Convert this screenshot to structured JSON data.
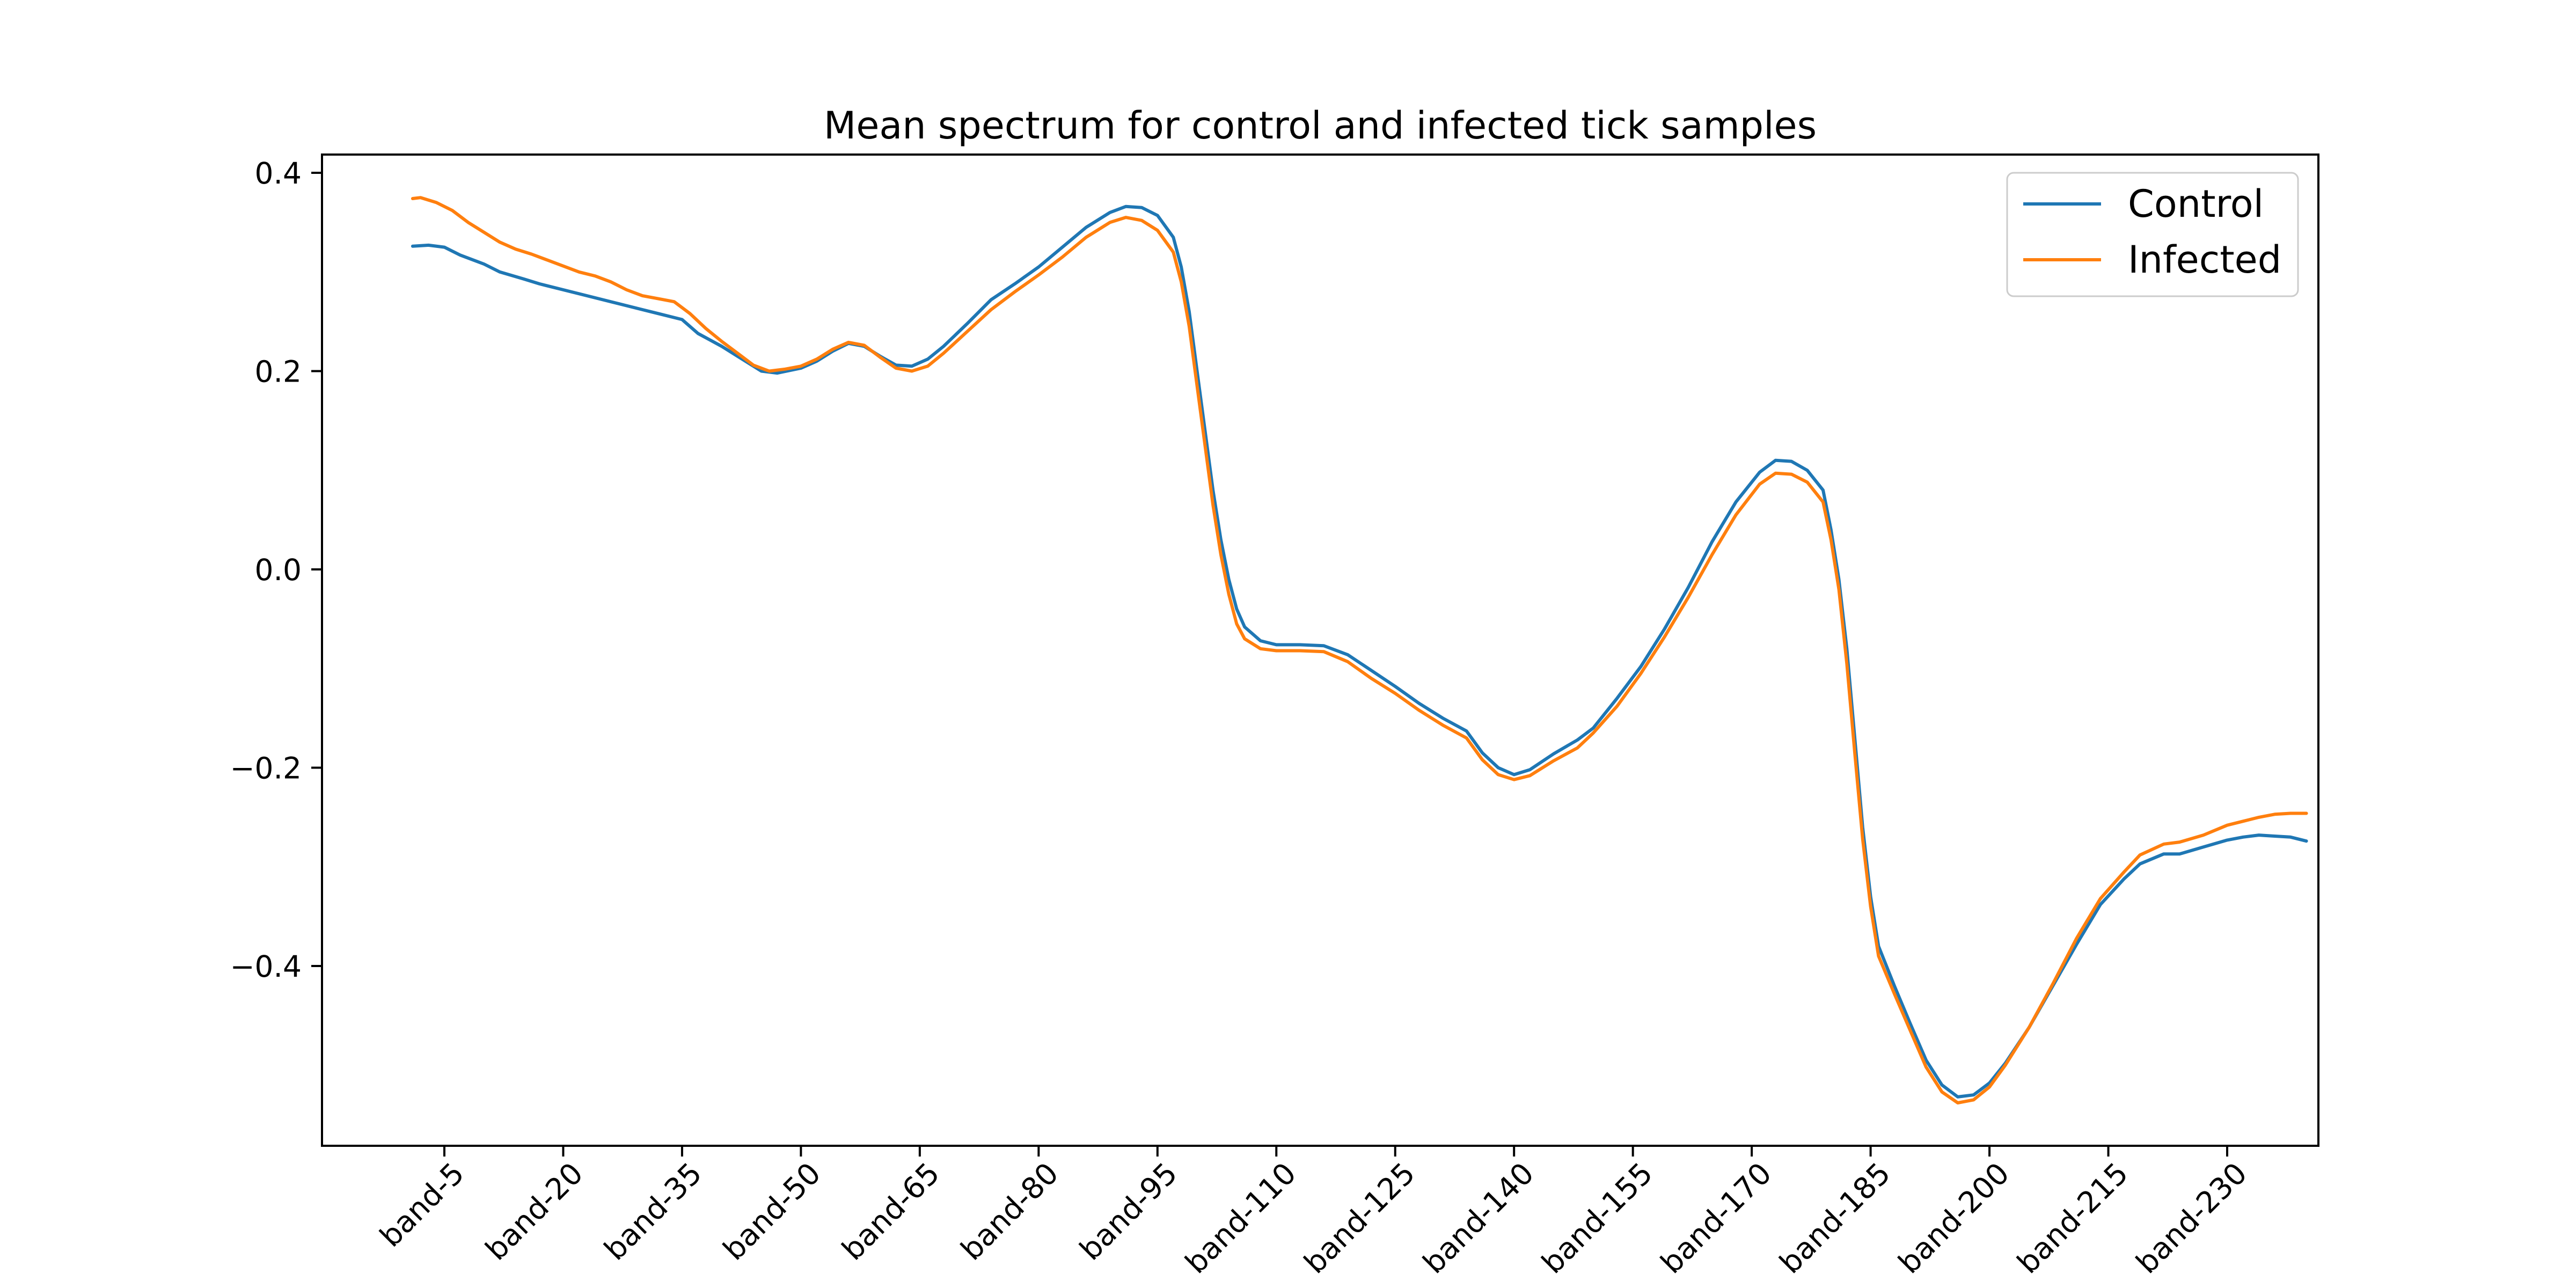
{
  "chart_data": {
    "type": "line",
    "title": "Mean spectrum for control and infected tick samples",
    "xlabel": "",
    "ylabel": "",
    "x_range": [
      0,
      234
    ],
    "ylim": [
      -0.58,
      0.42
    ],
    "grid": false,
    "legend_placement": "top-right",
    "x_ticks": [
      {
        "label": "band-5",
        "value": 5
      },
      {
        "label": "band-20",
        "value": 20
      },
      {
        "label": "band-35",
        "value": 35
      },
      {
        "label": "band-50",
        "value": 50
      },
      {
        "label": "band-65",
        "value": 65
      },
      {
        "label": "band-80",
        "value": 80
      },
      {
        "label": "band-95",
        "value": 95
      },
      {
        "label": "band-110",
        "value": 110
      },
      {
        "label": "band-125",
        "value": 125
      },
      {
        "label": "band-140",
        "value": 140
      },
      {
        "label": "band-155",
        "value": 155
      },
      {
        "label": "band-170",
        "value": 170
      },
      {
        "label": "band-185",
        "value": 185
      },
      {
        "label": "band-200",
        "value": 200
      },
      {
        "label": "band-215",
        "value": 215
      },
      {
        "label": "band-230",
        "value": 230
      }
    ],
    "y_ticks": [
      {
        "label": "0.4",
        "value": 0.4
      },
      {
        "label": "0.2",
        "value": 0.2
      },
      {
        "label": "0.0",
        "value": 0.0
      },
      {
        "label": "−0.2",
        "value": -0.2
      },
      {
        "label": "−0.4",
        "value": -0.4
      }
    ],
    "series": [
      {
        "name": "Control",
        "color": "#1f77b4",
        "points": [
          [
            1,
            0.326
          ],
          [
            3,
            0.327
          ],
          [
            5,
            0.325
          ],
          [
            7,
            0.317
          ],
          [
            10,
            0.308
          ],
          [
            12,
            0.3
          ],
          [
            15,
            0.293
          ],
          [
            17,
            0.288
          ],
          [
            20,
            0.282
          ],
          [
            22,
            0.278
          ],
          [
            25,
            0.272
          ],
          [
            27,
            0.268
          ],
          [
            30,
            0.262
          ],
          [
            32,
            0.258
          ],
          [
            35,
            0.252
          ],
          [
            37,
            0.238
          ],
          [
            40,
            0.225
          ],
          [
            42,
            0.215
          ],
          [
            45,
            0.2
          ],
          [
            47,
            0.198
          ],
          [
            50,
            0.203
          ],
          [
            52,
            0.21
          ],
          [
            54,
            0.22
          ],
          [
            56,
            0.228
          ],
          [
            58,
            0.225
          ],
          [
            60,
            0.215
          ],
          [
            62,
            0.206
          ],
          [
            64,
            0.205
          ],
          [
            66,
            0.212
          ],
          [
            68,
            0.225
          ],
          [
            71,
            0.248
          ],
          [
            74,
            0.272
          ],
          [
            77,
            0.288
          ],
          [
            80,
            0.305
          ],
          [
            83,
            0.325
          ],
          [
            86,
            0.345
          ],
          [
            89,
            0.36
          ],
          [
            91,
            0.366
          ],
          [
            93,
            0.365
          ],
          [
            95,
            0.357
          ],
          [
            97,
            0.335
          ],
          [
            98,
            0.305
          ],
          [
            99,
            0.26
          ],
          [
            100,
            0.2
          ],
          [
            101,
            0.14
          ],
          [
            102,
            0.08
          ],
          [
            103,
            0.03
          ],
          [
            104,
            -0.01
          ],
          [
            105,
            -0.04
          ],
          [
            106,
            -0.058
          ],
          [
            108,
            -0.072
          ],
          [
            110,
            -0.076
          ],
          [
            113,
            -0.076
          ],
          [
            116,
            -0.077
          ],
          [
            119,
            -0.086
          ],
          [
            122,
            -0.102
          ],
          [
            125,
            -0.118
          ],
          [
            128,
            -0.135
          ],
          [
            131,
            -0.15
          ],
          [
            134,
            -0.163
          ],
          [
            136,
            -0.185
          ],
          [
            138,
            -0.2
          ],
          [
            140,
            -0.207
          ],
          [
            142,
            -0.202
          ],
          [
            145,
            -0.186
          ],
          [
            148,
            -0.172
          ],
          [
            150,
            -0.16
          ],
          [
            153,
            -0.13
          ],
          [
            156,
            -0.098
          ],
          [
            159,
            -0.06
          ],
          [
            162,
            -0.018
          ],
          [
            165,
            0.028
          ],
          [
            168,
            0.068
          ],
          [
            171,
            0.098
          ],
          [
            173,
            0.11
          ],
          [
            175,
            0.109
          ],
          [
            177,
            0.1
          ],
          [
            179,
            0.08
          ],
          [
            180,
            0.04
          ],
          [
            181,
            -0.01
          ],
          [
            182,
            -0.08
          ],
          [
            183,
            -0.17
          ],
          [
            184,
            -0.26
          ],
          [
            185,
            -0.33
          ],
          [
            186,
            -0.38
          ],
          [
            188,
            -0.42
          ],
          [
            190,
            -0.458
          ],
          [
            192,
            -0.495
          ],
          [
            194,
            -0.52
          ],
          [
            196,
            -0.532
          ],
          [
            198,
            -0.53
          ],
          [
            200,
            -0.518
          ],
          [
            202,
            -0.498
          ],
          [
            205,
            -0.462
          ],
          [
            208,
            -0.42
          ],
          [
            211,
            -0.378
          ],
          [
            214,
            -0.338
          ],
          [
            217,
            -0.312
          ],
          [
            219,
            -0.297
          ],
          [
            222,
            -0.287
          ],
          [
            224,
            -0.287
          ],
          [
            227,
            -0.28
          ],
          [
            230,
            -0.273
          ],
          [
            232,
            -0.27
          ],
          [
            234,
            -0.268
          ],
          [
            236,
            -0.269
          ],
          [
            238,
            -0.27
          ],
          [
            240,
            -0.274
          ]
        ]
      },
      {
        "name": "Infected",
        "color": "#ff7f0e",
        "points": [
          [
            1,
            0.374
          ],
          [
            2,
            0.375
          ],
          [
            4,
            0.37
          ],
          [
            6,
            0.362
          ],
          [
            8,
            0.35
          ],
          [
            10,
            0.34
          ],
          [
            12,
            0.33
          ],
          [
            14,
            0.323
          ],
          [
            16,
            0.318
          ],
          [
            18,
            0.312
          ],
          [
            20,
            0.306
          ],
          [
            22,
            0.3
          ],
          [
            24,
            0.296
          ],
          [
            26,
            0.29
          ],
          [
            28,
            0.282
          ],
          [
            30,
            0.276
          ],
          [
            32,
            0.273
          ],
          [
            34,
            0.27
          ],
          [
            36,
            0.258
          ],
          [
            38,
            0.243
          ],
          [
            40,
            0.23
          ],
          [
            42,
            0.218
          ],
          [
            44,
            0.206
          ],
          [
            46,
            0.2
          ],
          [
            48,
            0.202
          ],
          [
            50,
            0.205
          ],
          [
            52,
            0.212
          ],
          [
            54,
            0.222
          ],
          [
            56,
            0.229
          ],
          [
            58,
            0.226
          ],
          [
            60,
            0.214
          ],
          [
            62,
            0.203
          ],
          [
            64,
            0.2
          ],
          [
            66,
            0.205
          ],
          [
            68,
            0.218
          ],
          [
            71,
            0.24
          ],
          [
            74,
            0.262
          ],
          [
            77,
            0.28
          ],
          [
            80,
            0.297
          ],
          [
            83,
            0.315
          ],
          [
            86,
            0.335
          ],
          [
            89,
            0.35
          ],
          [
            91,
            0.355
          ],
          [
            93,
            0.352
          ],
          [
            95,
            0.342
          ],
          [
            97,
            0.32
          ],
          [
            98,
            0.29
          ],
          [
            99,
            0.245
          ],
          [
            100,
            0.185
          ],
          [
            101,
            0.125
          ],
          [
            102,
            0.065
          ],
          [
            103,
            0.015
          ],
          [
            104,
            -0.025
          ],
          [
            105,
            -0.055
          ],
          [
            106,
            -0.07
          ],
          [
            108,
            -0.08
          ],
          [
            110,
            -0.082
          ],
          [
            113,
            -0.082
          ],
          [
            116,
            -0.083
          ],
          [
            119,
            -0.093
          ],
          [
            122,
            -0.11
          ],
          [
            125,
            -0.125
          ],
          [
            128,
            -0.142
          ],
          [
            131,
            -0.157
          ],
          [
            134,
            -0.17
          ],
          [
            136,
            -0.192
          ],
          [
            138,
            -0.207
          ],
          [
            140,
            -0.212
          ],
          [
            142,
            -0.208
          ],
          [
            145,
            -0.193
          ],
          [
            148,
            -0.18
          ],
          [
            150,
            -0.165
          ],
          [
            153,
            -0.138
          ],
          [
            156,
            -0.105
          ],
          [
            159,
            -0.068
          ],
          [
            162,
            -0.028
          ],
          [
            165,
            0.015
          ],
          [
            168,
            0.055
          ],
          [
            171,
            0.086
          ],
          [
            173,
            0.097
          ],
          [
            175,
            0.096
          ],
          [
            177,
            0.088
          ],
          [
            179,
            0.068
          ],
          [
            180,
            0.03
          ],
          [
            181,
            -0.02
          ],
          [
            182,
            -0.095
          ],
          [
            183,
            -0.185
          ],
          [
            184,
            -0.272
          ],
          [
            185,
            -0.34
          ],
          [
            186,
            -0.39
          ],
          [
            188,
            -0.428
          ],
          [
            190,
            -0.465
          ],
          [
            192,
            -0.502
          ],
          [
            194,
            -0.527
          ],
          [
            196,
            -0.538
          ],
          [
            198,
            -0.535
          ],
          [
            200,
            -0.522
          ],
          [
            202,
            -0.5
          ],
          [
            205,
            -0.462
          ],
          [
            208,
            -0.418
          ],
          [
            211,
            -0.372
          ],
          [
            214,
            -0.332
          ],
          [
            217,
            -0.305
          ],
          [
            219,
            -0.288
          ],
          [
            222,
            -0.277
          ],
          [
            224,
            -0.275
          ],
          [
            227,
            -0.268
          ],
          [
            230,
            -0.258
          ],
          [
            232,
            -0.254
          ],
          [
            234,
            -0.25
          ],
          [
            236,
            -0.247
          ],
          [
            238,
            -0.246
          ],
          [
            240,
            -0.246
          ]
        ]
      }
    ]
  }
}
